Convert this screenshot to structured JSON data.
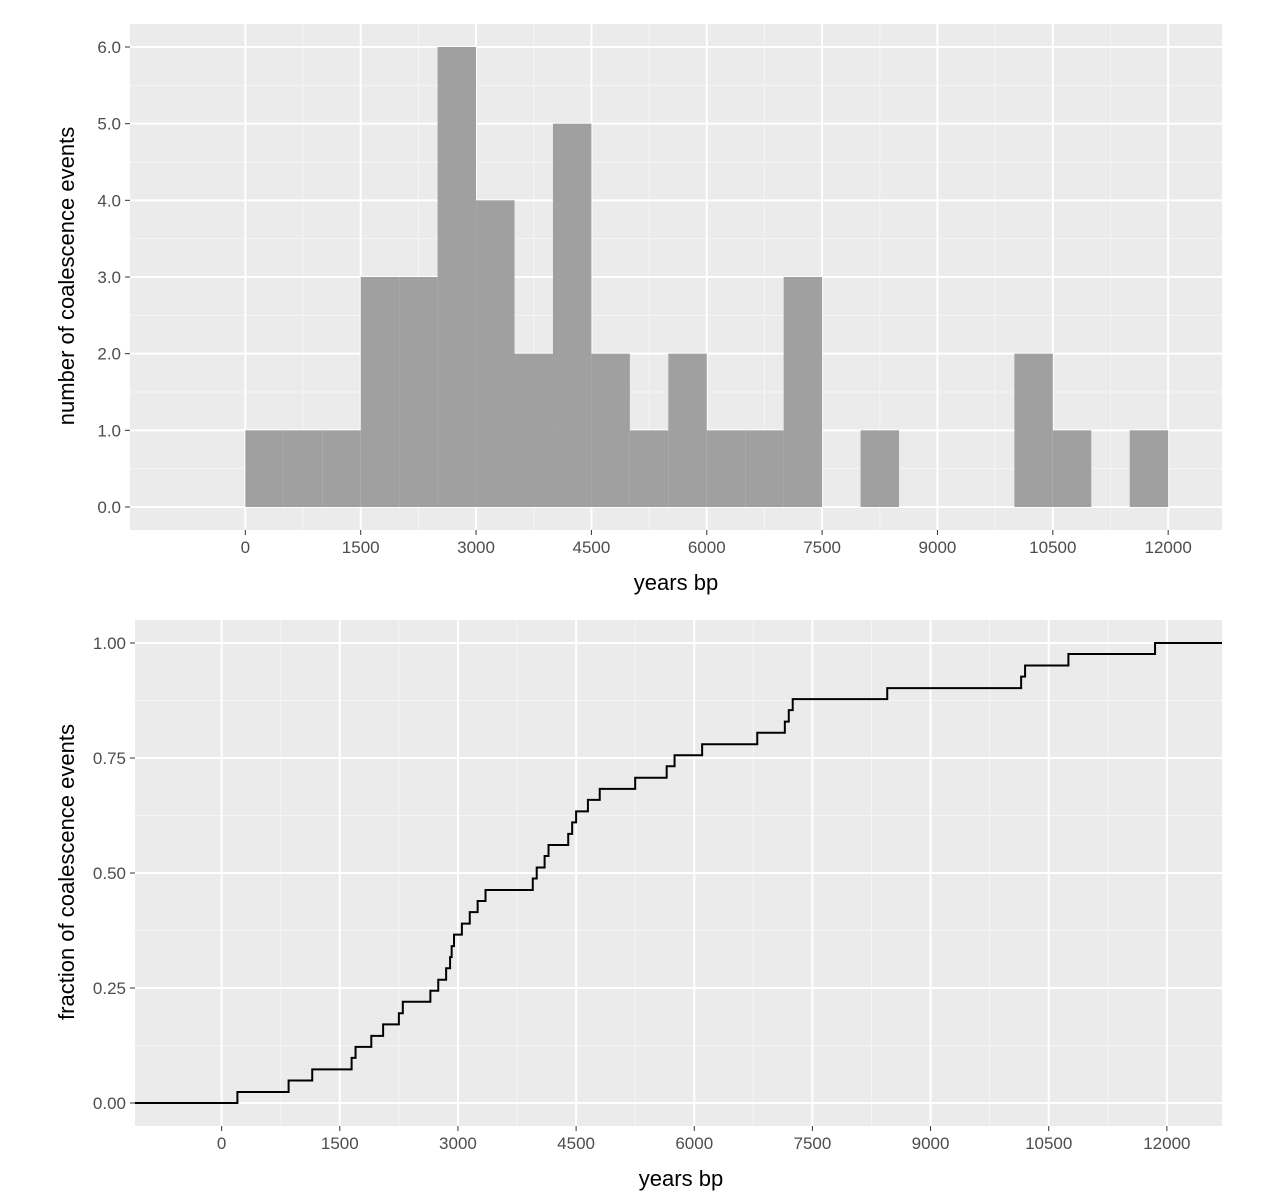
{
  "colors": {
    "panel_bg": "#ebebeb",
    "grid_major": "#ffffff",
    "grid_minor": "#f5f5f5",
    "bar_fill": "#a0a0a0",
    "line": "#000000",
    "tick_label": "#4d4d4d"
  },
  "chart_data": [
    {
      "type": "bar",
      "subtype": "histogram",
      "xlabel": "years bp",
      "ylabel": "number of coalescence events",
      "xlim": [
        -1500,
        12700
      ],
      "ylim": [
        -0.3,
        6.3
      ],
      "xticks": [
        0,
        1500,
        3000,
        4500,
        6000,
        7500,
        9000,
        10500,
        12000
      ],
      "xtick_labels": [
        "0",
        "1500",
        "3000",
        "4500",
        "6000",
        "7500",
        "9000",
        "10500",
        "12000"
      ],
      "yticks": [
        0,
        1,
        2,
        3,
        4,
        5,
        6
      ],
      "ytick_labels": [
        "0.0",
        "1.0",
        "2.0",
        "3.0",
        "4.0",
        "5.0",
        "6.0"
      ],
      "bin_width": 500,
      "bin_starts": [
        0,
        500,
        1000,
        1500,
        2000,
        2500,
        3000,
        3500,
        4000,
        4500,
        5000,
        5500,
        6000,
        6500,
        7000,
        7500,
        8000,
        8500,
        9000,
        9500,
        10000,
        10500,
        11000,
        11500
      ],
      "values": [
        1,
        1,
        1,
        3,
        3,
        6,
        4,
        2,
        5,
        2,
        1,
        2,
        1,
        1,
        3,
        0,
        1,
        0,
        0,
        0,
        2,
        1,
        0,
        1
      ],
      "grid": true
    },
    {
      "type": "line",
      "subtype": "step",
      "xlabel": "years bp",
      "ylabel": "fraction of coalescence events",
      "xlim": [
        -1100,
        12700
      ],
      "ylim": [
        -0.05,
        1.05
      ],
      "xticks": [
        0,
        1500,
        3000,
        4500,
        6000,
        7500,
        9000,
        10500,
        12000
      ],
      "xtick_labels": [
        "0",
        "1500",
        "3000",
        "4500",
        "6000",
        "7500",
        "9000",
        "10500",
        "12000"
      ],
      "yticks": [
        0,
        0.25,
        0.5,
        0.75,
        1.0
      ],
      "ytick_labels": [
        "0.00",
        "0.25",
        "0.50",
        "0.75",
        "1.00"
      ],
      "x": [
        200,
        850,
        1150,
        1650,
        1700,
        1900,
        2050,
        2250,
        2300,
        2650,
        2750,
        2850,
        2900,
        2920,
        2950,
        3050,
        3150,
        3250,
        3350,
        3950,
        4000,
        4100,
        4150,
        4400,
        4450,
        4500,
        4650,
        4800,
        5250,
        5650,
        5750,
        6100,
        6800,
        7150,
        7200,
        7250,
        8450,
        10150,
        10200,
        10750,
        11850,
        12700
      ],
      "y": [
        0.024,
        0.049,
        0.073,
        0.098,
        0.122,
        0.146,
        0.171,
        0.195,
        0.22,
        0.244,
        0.268,
        0.293,
        0.317,
        0.341,
        0.366,
        0.39,
        0.415,
        0.439,
        0.463,
        0.488,
        0.512,
        0.537,
        0.561,
        0.585,
        0.61,
        0.634,
        0.659,
        0.683,
        0.707,
        0.732,
        0.756,
        0.78,
        0.805,
        0.829,
        0.854,
        0.878,
        0.902,
        0.927,
        0.951,
        0.976,
        1.0,
        1.0
      ],
      "grid": true
    }
  ]
}
